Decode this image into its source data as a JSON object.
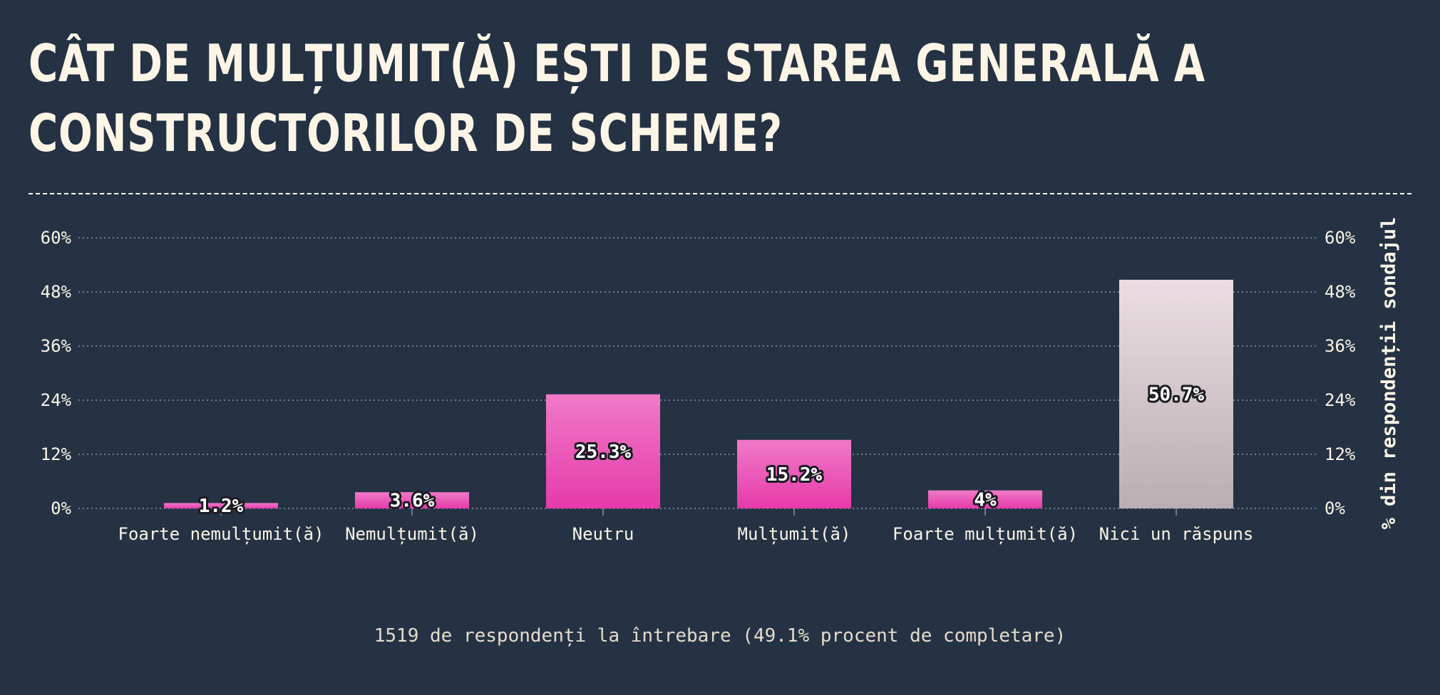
{
  "chart_data": {
    "type": "bar",
    "title": "CÂT DE MULȚUMIT(Ă) EȘTI DE STAREA GENERALĂ A CONSTRUCTORILOR DE SCHEME?",
    "categories": [
      "Foarte nemulțumit(ă)",
      "Nemulțumit(ă)",
      "Neutru",
      "Mulțumit(ă)",
      "Foarte mulțumit(ă)",
      "Nici un răspuns"
    ],
    "values": [
      1.2,
      3.6,
      25.3,
      15.2,
      4,
      50.7
    ],
    "value_labels": [
      "1.2%",
      "3.6%",
      "25.3%",
      "15.2%",
      "4%",
      "50.7%"
    ],
    "ylabel": "% din respondenții sondajul",
    "ylim": [
      0,
      60
    ],
    "yticks": [
      0,
      12,
      24,
      36,
      48,
      60
    ],
    "ytick_labels": [
      "0%",
      "12%",
      "24%",
      "36%",
      "48%",
      "60%"
    ],
    "grid": true,
    "colors": {
      "answered_bar_top": "#f07ac8",
      "answered_bar_bottom": "#e63aaa",
      "no_answer_bar_top": "#ebdde3",
      "no_answer_bar_bottom": "#b9aeb3",
      "background": "#253244",
      "text": "#fcf5e6"
    },
    "footnote": "1519 de respondenți la întrebare (49.1% procent de completare)"
  }
}
